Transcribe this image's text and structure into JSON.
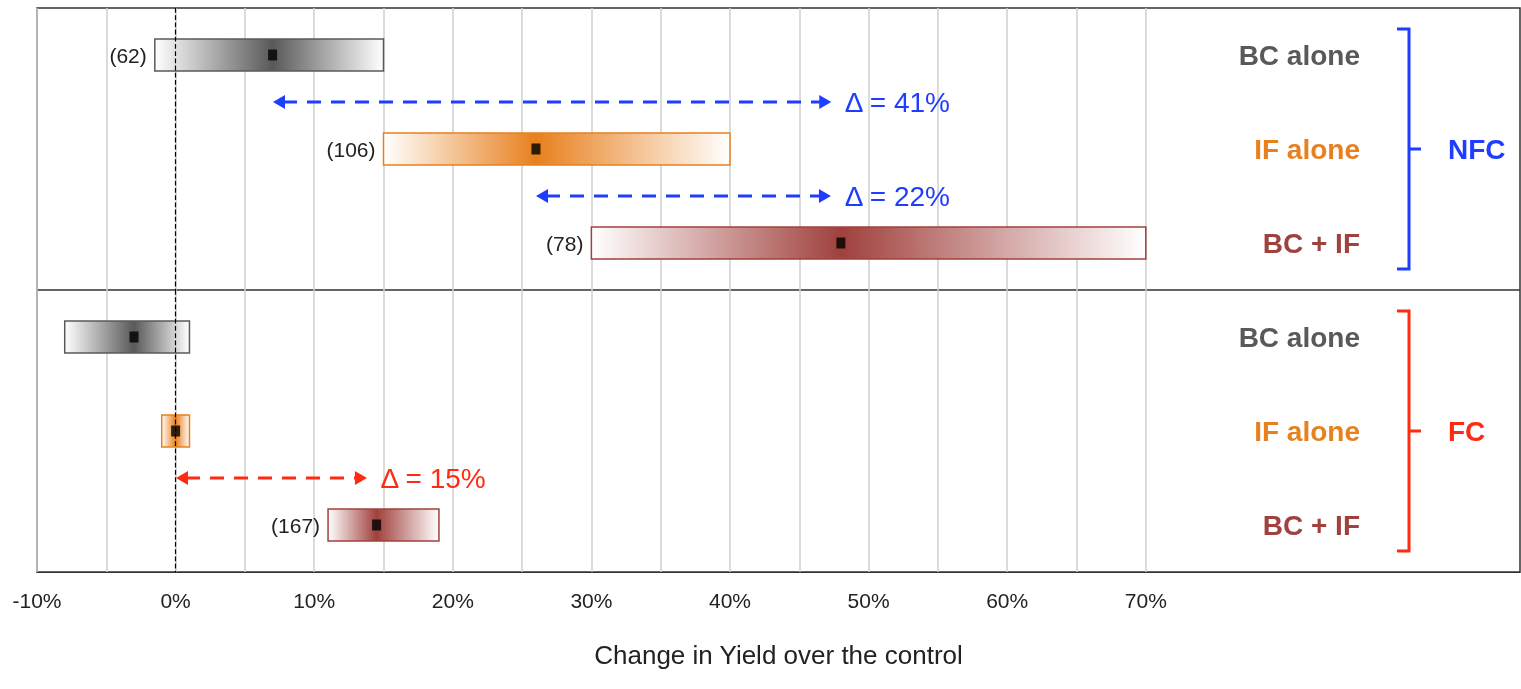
{
  "chart_data": [
    {
      "type": "bar",
      "orientation": "horizontal",
      "categories": [
        "BC alone",
        "IF alone",
        "BC + IF"
      ],
      "ylabel": "NFC",
      "series": [
        {
          "colors": [
            "#595959",
            "#e8801e",
            "#a0413d"
          ],
          "base": [
            -1.5,
            15,
            30
          ],
          "values": [
            16.5,
            25,
            40
          ]
        },
        {
          "type": "scatter",
          "x": [
            "BC alone",
            "IF alone",
            "BC + IF"
          ],
          "values": [
            7,
            26,
            48
          ],
          "color": "#000000"
        }
      ],
      "marker": "square",
      "xlim": [
        -10,
        97
      ],
      "xticks": [
        -10,
        -5,
        0,
        5,
        10,
        15,
        20,
        25,
        30,
        35,
        40,
        45,
        50,
        55,
        60,
        65,
        70
      ],
      "grid": "x",
      "tick_labels": "y",
      "ref_lines": [
        {
          "axis": "x",
          "value": 0,
          "color": "#000000",
          "line_style": "dashed"
        }
      ],
      "annotations": [
        {
          "text": "(62)",
          "x": -1.5,
          "y": "BC alone"
        },
        {
          "text": "(106)",
          "x": 15,
          "y": "IF alone"
        },
        {
          "text": "(78)",
          "x": 30,
          "y": "BC + IF"
        },
        "Δ = 41%",
        "Δ = 22%"
      ]
    },
    {
      "type": "bar",
      "orientation": "horizontal",
      "categories": [
        "BC alone",
        "IF alone",
        "BC + IF"
      ],
      "ylabel": "FC",
      "xlabel": "Change in Yield over the control",
      "series": [
        {
          "colors": [
            "#595959",
            "#e8801e",
            "#a0413d"
          ],
          "base": [
            -8,
            -1,
            11
          ],
          "values": [
            9,
            2,
            8
          ]
        },
        {
          "type": "scatter",
          "x": [
            "BC alone",
            "IF alone",
            "BC + IF"
          ],
          "values": [
            -3,
            0,
            14.5
          ],
          "color": "#000000"
        }
      ],
      "marker": "square",
      "xlim": [
        -10,
        97
      ],
      "xticks": [
        {
          "value": -10,
          "label": "-10%"
        },
        {
          "value": -5,
          "label": null
        },
        {
          "value": 0,
          "label": "0%"
        },
        {
          "value": 5,
          "label": null
        },
        {
          "value": 10,
          "label": "10%"
        },
        {
          "value": 15,
          "label": null
        },
        {
          "value": 20,
          "label": "20%"
        },
        {
          "value": 25,
          "label": null
        },
        {
          "value": 30,
          "label": "30%"
        },
        {
          "value": 35,
          "label": null
        },
        {
          "value": 40,
          "label": "40%"
        },
        {
          "value": 45,
          "label": null
        },
        {
          "value": 50,
          "label": "50%"
        },
        {
          "value": 55,
          "label": null
        },
        {
          "value": 60,
          "label": "60%"
        },
        {
          "value": 65,
          "label": null
        },
        {
          "value": 70,
          "label": "70%"
        }
      ],
      "grid": "x",
      "ref_lines": [
        {
          "axis": "x",
          "value": 0,
          "color": "#000000",
          "line_style": "dashed"
        }
      ],
      "annotations": [
        {
          "text": "(167)",
          "x": 11,
          "y": "BC + IF"
        },
        "Δ = 15%"
      ]
    }
  ]
}
